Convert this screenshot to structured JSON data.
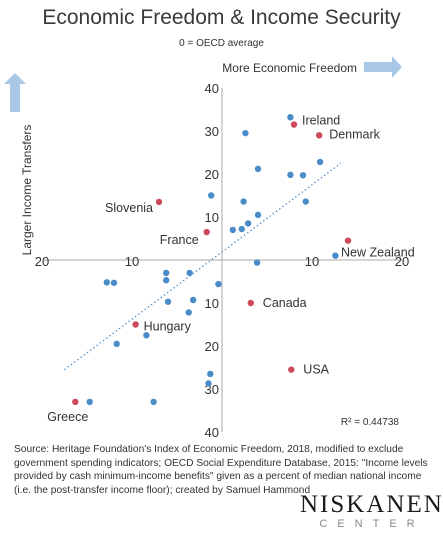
{
  "header": {
    "title": "Economic Freedom & Income Security",
    "subtitle": "0 = OECD average"
  },
  "colors": {
    "point": "#4a8cc8",
    "highlight": "#cc4a5c",
    "trend": "#4a8cc8",
    "arrow": "#a9c8e8",
    "axis": "#aaaaaa"
  },
  "chart_data": {
    "type": "scatter",
    "title": "Economic Freedom & Income Security",
    "subtitle": "0 = OECD average",
    "xlim": [
      -20,
      20
    ],
    "ylim": [
      -40,
      40
    ],
    "x_tick_labels": [
      {
        "value": -20,
        "label": "20"
      },
      {
        "value": -10,
        "label": "10"
      },
      {
        "value": 10,
        "label": "10"
      },
      {
        "value": 20,
        "label": "20"
      }
    ],
    "y_tick_labels": [
      {
        "value": 40,
        "label": "40"
      },
      {
        "value": 30,
        "label": "30"
      },
      {
        "value": 20,
        "label": "20"
      },
      {
        "value": 10,
        "label": "10"
      },
      {
        "value": -10,
        "label": "10"
      },
      {
        "value": -20,
        "label": "20"
      },
      {
        "value": -30,
        "label": "30"
      },
      {
        "value": -40,
        "label": "40"
      }
    ],
    "x_direction_label": "More Economic Freedom",
    "y_direction_label": "Larger Income Transfers",
    "r_squared_label": "R² = 0.44738",
    "trendline": {
      "x": [
        -17.5,
        13.2
      ],
      "y": [
        -25.5,
        22.5
      ]
    },
    "highlighted": [
      {
        "name": "Ireland",
        "x": 8.0,
        "y": 31.5
      },
      {
        "name": "Denmark",
        "x": 10.8,
        "y": 29.0
      },
      {
        "name": "Slovenia",
        "x": -7.0,
        "y": 13.5
      },
      {
        "name": "France",
        "x": -1.7,
        "y": 6.5
      },
      {
        "name": "New Zealand",
        "x": 14.0,
        "y": 4.5
      },
      {
        "name": "Canada",
        "x": 3.2,
        "y": -10.0
      },
      {
        "name": "Hungary",
        "x": -9.6,
        "y": -15.0
      },
      {
        "name": "USA",
        "x": 7.7,
        "y": -25.5
      },
      {
        "name": "Greece",
        "x": -16.3,
        "y": -33.0
      }
    ],
    "points": [
      {
        "x": 7.6,
        "y": 33.2
      },
      {
        "x": 2.6,
        "y": 29.5
      },
      {
        "x": 10.9,
        "y": 22.8
      },
      {
        "x": 4.0,
        "y": 21.2
      },
      {
        "x": 7.6,
        "y": 19.8
      },
      {
        "x": 9.0,
        "y": 19.7
      },
      {
        "x": -1.2,
        "y": 15.0
      },
      {
        "x": 2.4,
        "y": 13.6
      },
      {
        "x": 9.3,
        "y": 13.6
      },
      {
        "x": 4.0,
        "y": 10.5
      },
      {
        "x": 2.9,
        "y": 8.5
      },
      {
        "x": 2.2,
        "y": 7.2
      },
      {
        "x": 1.2,
        "y": 7.0
      },
      {
        "x": 12.6,
        "y": 1.0
      },
      {
        "x": -6.2,
        "y": -3.0
      },
      {
        "x": -3.6,
        "y": -3.0
      },
      {
        "x": -6.2,
        "y": -4.7
      },
      {
        "x": -12.8,
        "y": -5.2
      },
      {
        "x": -12.0,
        "y": -5.3
      },
      {
        "x": -0.4,
        "y": -5.6
      },
      {
        "x": -3.2,
        "y": -9.3
      },
      {
        "x": -6.0,
        "y": -9.7
      },
      {
        "x": -3.7,
        "y": -12.2
      },
      {
        "x": -8.4,
        "y": -17.5
      },
      {
        "x": -11.7,
        "y": -19.5
      },
      {
        "x": -1.3,
        "y": -26.5
      },
      {
        "x": -1.5,
        "y": -28.7
      },
      {
        "x": -14.7,
        "y": -33.0
      },
      {
        "x": -7.6,
        "y": -33.0
      },
      {
        "x": 3.9,
        "y": -0.6
      }
    ]
  },
  "footer": {
    "source": "Source: Heritage Foundation's Index of Economic Freedom, 2018, modified to exclude government spending indicators; OECD Social Expenditure Database, 2015: \"Income levels provided by cash minimum-income benefits\" given as a percent of median national income (i.e. the post-transfer income floor); created by Samuel Hammond",
    "brand_name": "NISKANEN",
    "brand_sub": "CENTER"
  }
}
